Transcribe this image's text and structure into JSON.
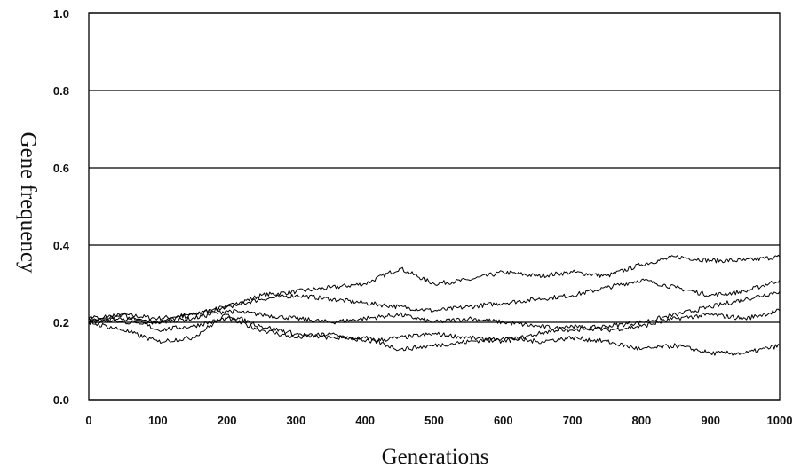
{
  "chart_data": {
    "type": "line",
    "xlabel": "Generations",
    "ylabel": "Gene frequency",
    "xlim": [
      0,
      1000
    ],
    "ylim": [
      0.0,
      1.0
    ],
    "x_ticks": [
      "0",
      "100",
      "200",
      "300",
      "400",
      "500",
      "600",
      "700",
      "800",
      "900",
      "1000"
    ],
    "y_ticks": [
      "0.0",
      "0.2",
      "0.4",
      "0.6",
      "0.8",
      "1.0"
    ],
    "grid": "horizontal",
    "legend": "none",
    "x": [
      0,
      50,
      100,
      150,
      200,
      250,
      300,
      350,
      400,
      450,
      500,
      550,
      600,
      650,
      700,
      750,
      800,
      850,
      900,
      950,
      1000
    ],
    "series": [
      {
        "values": [
          0.2,
          0.22,
          0.21,
          0.22,
          0.24,
          0.27,
          0.28,
          0.29,
          0.3,
          0.34,
          0.3,
          0.31,
          0.33,
          0.32,
          0.33,
          0.32,
          0.35,
          0.37,
          0.36,
          0.36,
          0.37
        ]
      },
      {
        "values": [
          0.21,
          0.2,
          0.2,
          0.22,
          0.24,
          0.26,
          0.27,
          0.26,
          0.25,
          0.24,
          0.23,
          0.24,
          0.25,
          0.26,
          0.27,
          0.29,
          0.31,
          0.29,
          0.27,
          0.28,
          0.31
        ]
      },
      {
        "values": [
          0.2,
          0.21,
          0.2,
          0.21,
          0.23,
          0.22,
          0.21,
          0.2,
          0.21,
          0.22,
          0.2,
          0.21,
          0.2,
          0.19,
          0.18,
          0.19,
          0.2,
          0.22,
          0.24,
          0.26,
          0.28
        ]
      },
      {
        "values": [
          0.21,
          0.22,
          0.18,
          0.19,
          0.21,
          0.18,
          0.16,
          0.17,
          0.15,
          0.16,
          0.17,
          0.16,
          0.15,
          0.17,
          0.19,
          0.18,
          0.19,
          0.21,
          0.22,
          0.21,
          0.23
        ]
      },
      {
        "values": [
          0.2,
          0.18,
          0.15,
          0.16,
          0.22,
          0.19,
          0.17,
          0.16,
          0.16,
          0.13,
          0.14,
          0.15,
          0.16,
          0.15,
          0.16,
          0.15,
          0.13,
          0.14,
          0.12,
          0.12,
          0.14
        ]
      }
    ]
  }
}
